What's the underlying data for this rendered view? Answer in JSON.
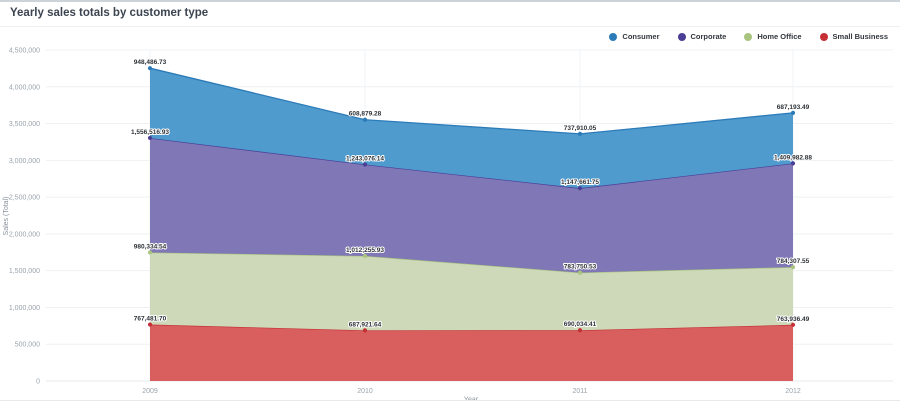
{
  "header": {
    "title": "Yearly sales totals by customer type"
  },
  "chart_data": {
    "type": "area",
    "stacked": true,
    "title": "Yearly sales totals by customer type",
    "xlabel": "Year",
    "ylabel": "Sales (Total)",
    "categories": [
      "2009",
      "2010",
      "2011",
      "2012"
    ],
    "ylim": [
      0,
      4500000
    ],
    "ytick_step": 500000,
    "yticks": [
      "0",
      "500,000",
      "1,000,000",
      "1,500,000",
      "2,000,000",
      "2,500,000",
      "3,000,000",
      "3,500,000",
      "4,000,000",
      "4,500,000"
    ],
    "grid": true,
    "legend_position": "top-right",
    "stack_order_bottom_to_top": [
      "Small Business",
      "Home Office",
      "Corporate",
      "Consumer"
    ],
    "series": [
      {
        "name": "Consumer",
        "color": "#2b7bb9",
        "fill": "#509bcd",
        "values": [
          948486.73,
          608879.28,
          737910.05,
          687193.49
        ],
        "labels": [
          "948,486.73",
          "608,879.28",
          "737,910.05",
          "687,193.49"
        ]
      },
      {
        "name": "Corporate",
        "color": "#4a3d96",
        "fill": "#7f77b6",
        "values": [
          1556516.93,
          1243076.14,
          1147661.75,
          1409982.88
        ],
        "labels": [
          "1,556,516.93",
          "1,243,076.14",
          "1,147,661.75",
          "1,409,982.88"
        ]
      },
      {
        "name": "Home Office",
        "color": "#a9c47e",
        "fill": "#cdd9b8",
        "values": [
          980334.54,
          1012255.93,
          783750.53,
          784307.55
        ],
        "labels": [
          "980,334.54",
          "1,012,255.93",
          "783,750.53",
          "784,307.55"
        ]
      },
      {
        "name": "Small Business",
        "color": "#c62f35",
        "fill": "#d85f5e",
        "values": [
          767481.7,
          687921.64,
          690034.41,
          763936.49
        ],
        "labels": [
          "767,481.70",
          "687,921.64",
          "690,034.41",
          "763,936.49"
        ]
      }
    ]
  }
}
